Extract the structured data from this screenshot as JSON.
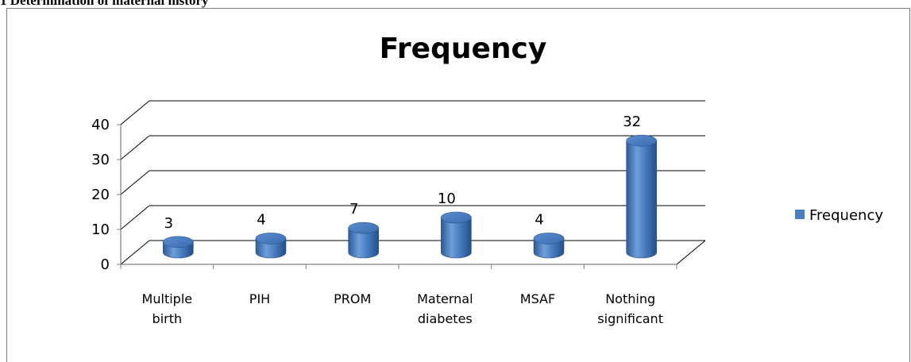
{
  "caption": "1 Determination of maternal history",
  "chart_data": {
    "type": "bar",
    "title": "Frequency",
    "categories": [
      [
        "Multiple",
        "birth"
      ],
      [
        "PIH"
      ],
      [
        "PROM"
      ],
      [
        "Maternal",
        "diabetes"
      ],
      [
        "MSAF"
      ],
      [
        "Nothing",
        "significant"
      ]
    ],
    "series": [
      {
        "name": "Frequency",
        "values": [
          3,
          4,
          7,
          10,
          4,
          32
        ]
      }
    ],
    "ylim": [
      0,
      40
    ],
    "yticks": [
      0,
      10,
      20,
      30,
      40
    ],
    "data_labels": true,
    "grid": true,
    "legend_position": "right",
    "bar_color": "#4a7fc1"
  }
}
